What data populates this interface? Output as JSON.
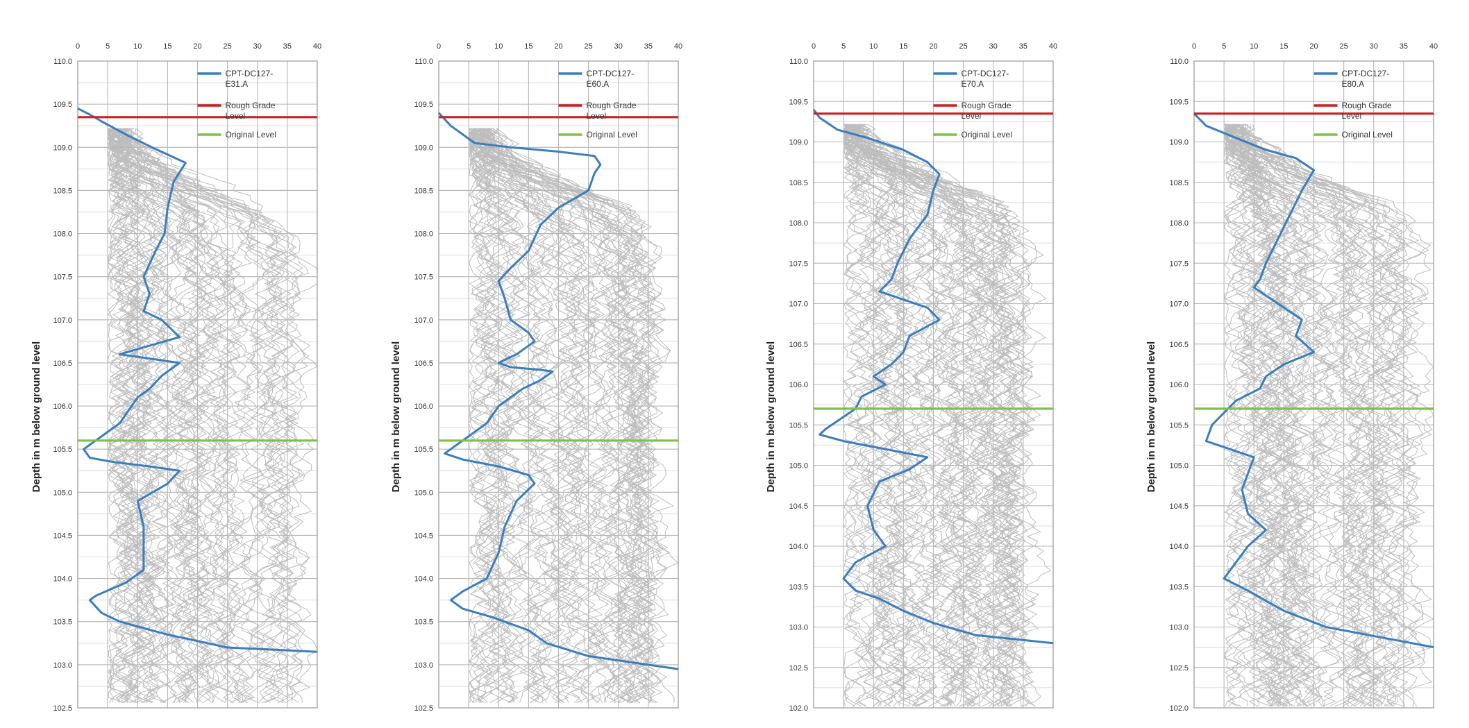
{
  "chart_data": [
    {
      "type": "line",
      "ylabel": "Depth in m below ground level",
      "xlim": [
        0,
        40
      ],
      "ylim": [
        102.5,
        110.0
      ],
      "x_ticks": [
        "0",
        "5",
        "10",
        "15",
        "20",
        "25",
        "30",
        "35",
        "40"
      ],
      "y_ticks": [
        "102.5",
        "103.0",
        "103.5",
        "104.0",
        "104.5",
        "105.0",
        "105.5",
        "106.0",
        "106.5",
        "107.0",
        "107.5",
        "108.0",
        "108.5",
        "109.0",
        "109.5",
        "110.0"
      ],
      "grid": true,
      "legend_position": "top-right",
      "series": [
        {
          "name": "CPT-DC127-E31.A",
          "color": "#3a7ebf",
          "points": [
            [
              0,
              109.45
            ],
            [
              2,
              109.38
            ],
            [
              4,
              109.3
            ],
            [
              8,
              109.15
            ],
            [
              13,
              108.98
            ],
            [
              18,
              108.82
            ],
            [
              16,
              108.6
            ],
            [
              15,
              108.3
            ],
            [
              14.5,
              108.0
            ],
            [
              13,
              107.8
            ],
            [
              11,
              107.5
            ],
            [
              12,
              107.3
            ],
            [
              11,
              107.1
            ],
            [
              14,
              107.0
            ],
            [
              17,
              106.8
            ],
            [
              12,
              106.7
            ],
            [
              7,
              106.6
            ],
            [
              12,
              106.55
            ],
            [
              17,
              106.5
            ],
            [
              14,
              106.35
            ],
            [
              12,
              106.2
            ],
            [
              10,
              106.1
            ],
            [
              9,
              106.0
            ],
            [
              7,
              105.8
            ],
            [
              4,
              105.65
            ],
            [
              1,
              105.5
            ],
            [
              2,
              105.4
            ],
            [
              6,
              105.35
            ],
            [
              12,
              105.3
            ],
            [
              17,
              105.25
            ],
            [
              15,
              105.1
            ],
            [
              10,
              104.9
            ],
            [
              11,
              104.6
            ],
            [
              11,
              104.4
            ],
            [
              11,
              104.1
            ],
            [
              8,
              103.95
            ],
            [
              3,
              103.8
            ],
            [
              2,
              103.75
            ],
            [
              4,
              103.6
            ],
            [
              7,
              103.5
            ],
            [
              15,
              103.35
            ],
            [
              25,
              103.2
            ],
            [
              40,
              103.15
            ]
          ]
        },
        {
          "name": "Rough Grade Level",
          "color": "#cc1f1f",
          "points": [
            [
              0,
              109.35
            ],
            [
              40,
              109.35
            ]
          ]
        },
        {
          "name": "Original Level",
          "color": "#7cc243",
          "points": [
            [
              0,
              105.6
            ],
            [
              40,
              105.6
            ]
          ]
        }
      ]
    },
    {
      "type": "line",
      "ylabel": "Depth in m below ground level",
      "xlim": [
        0,
        40
      ],
      "ylim": [
        102.5,
        110.0
      ],
      "x_ticks": [
        "0",
        "5",
        "10",
        "15",
        "20",
        "25",
        "30",
        "35",
        "40"
      ],
      "y_ticks": [
        "102.5",
        "103.0",
        "103.5",
        "104.0",
        "104.5",
        "105.0",
        "105.5",
        "106.0",
        "106.5",
        "107.0",
        "107.5",
        "108.0",
        "108.5",
        "109.0",
        "109.5",
        "110.0"
      ],
      "grid": true,
      "legend_position": "top-right",
      "series": [
        {
          "name": "CPT-DC127-E60.A",
          "color": "#3a7ebf",
          "points": [
            [
              0,
              109.4
            ],
            [
              2,
              109.25
            ],
            [
              6,
              109.05
            ],
            [
              12,
              109.0
            ],
            [
              20,
              108.95
            ],
            [
              26,
              108.9
            ],
            [
              27,
              108.8
            ],
            [
              26,
              108.7
            ],
            [
              25,
              108.5
            ],
            [
              20,
              108.3
            ],
            [
              17,
              108.1
            ],
            [
              15,
              107.8
            ],
            [
              12,
              107.6
            ],
            [
              10,
              107.45
            ],
            [
              11,
              107.25
            ],
            [
              12,
              107.0
            ],
            [
              15,
              106.85
            ],
            [
              16,
              106.75
            ],
            [
              13,
              106.6
            ],
            [
              10,
              106.5
            ],
            [
              12,
              106.45
            ],
            [
              17,
              106.42
            ],
            [
              19,
              106.4
            ],
            [
              17,
              106.3
            ],
            [
              14,
              106.2
            ],
            [
              12,
              106.1
            ],
            [
              10,
              106.0
            ],
            [
              8,
              105.8
            ],
            [
              5,
              105.65
            ],
            [
              2,
              105.5
            ],
            [
              1,
              105.45
            ],
            [
              4,
              105.38
            ],
            [
              10,
              105.3
            ],
            [
              15,
              105.2
            ],
            [
              16,
              105.1
            ],
            [
              13,
              104.9
            ],
            [
              11,
              104.6
            ],
            [
              10,
              104.3
            ],
            [
              8,
              104.0
            ],
            [
              4,
              103.85
            ],
            [
              2,
              103.75
            ],
            [
              4,
              103.65
            ],
            [
              9,
              103.55
            ],
            [
              15,
              103.4
            ],
            [
              18,
              103.25
            ],
            [
              25,
              103.1
            ],
            [
              40,
              102.95
            ]
          ]
        },
        {
          "name": "Rough Grade Level",
          "color": "#cc1f1f",
          "points": [
            [
              0,
              109.35
            ],
            [
              40,
              109.35
            ]
          ]
        },
        {
          "name": "Original Level",
          "color": "#7cc243",
          "points": [
            [
              0,
              105.6
            ],
            [
              40,
              105.6
            ]
          ]
        }
      ]
    },
    {
      "type": "line",
      "ylabel": "Depth in m below ground level",
      "xlim": [
        0,
        40
      ],
      "ylim": [
        102.0,
        110.0
      ],
      "x_ticks": [
        "0",
        "5",
        "10",
        "15",
        "20",
        "25",
        "30",
        "35",
        "40"
      ],
      "y_ticks": [
        "102.0",
        "102.5",
        "103.0",
        "103.5",
        "104.0",
        "104.5",
        "105.0",
        "105.5",
        "106.0",
        "106.5",
        "107.0",
        "107.5",
        "108.0",
        "108.5",
        "109.0",
        "109.5",
        "110.0"
      ],
      "grid": true,
      "legend_position": "top-right",
      "series": [
        {
          "name": "CPT-DC127-E70.A",
          "color": "#3a7ebf",
          "points": [
            [
              0,
              109.4
            ],
            [
              1,
              109.3
            ],
            [
              4,
              109.15
            ],
            [
              9,
              109.05
            ],
            [
              15,
              108.9
            ],
            [
              19,
              108.75
            ],
            [
              21,
              108.6
            ],
            [
              20,
              108.4
            ],
            [
              19,
              108.1
            ],
            [
              16,
              107.8
            ],
            [
              14,
              107.5
            ],
            [
              13,
              107.3
            ],
            [
              11,
              107.15
            ],
            [
              15,
              107.05
            ],
            [
              19,
              106.95
            ],
            [
              21,
              106.8
            ],
            [
              16,
              106.6
            ],
            [
              15,
              106.4
            ],
            [
              13,
              106.25
            ],
            [
              10,
              106.1
            ],
            [
              12,
              106.0
            ],
            [
              8,
              105.85
            ],
            [
              7,
              105.7
            ],
            [
              5,
              105.6
            ],
            [
              2,
              105.45
            ],
            [
              1,
              105.38
            ],
            [
              5,
              105.3
            ],
            [
              12,
              105.2
            ],
            [
              19,
              105.1
            ],
            [
              16,
              104.95
            ],
            [
              11,
              104.8
            ],
            [
              9,
              104.5
            ],
            [
              10,
              104.2
            ],
            [
              12,
              104.0
            ],
            [
              7,
              103.8
            ],
            [
              5,
              103.6
            ],
            [
              7,
              103.45
            ],
            [
              11,
              103.35
            ],
            [
              15,
              103.2
            ],
            [
              20,
              103.05
            ],
            [
              27,
              102.9
            ],
            [
              40,
              102.8
            ]
          ]
        },
        {
          "name": "Rough Grade Level",
          "color": "#cc1f1f",
          "points": [
            [
              0,
              109.35
            ],
            [
              40,
              109.35
            ]
          ]
        },
        {
          "name": "Original Level",
          "color": "#7cc243",
          "points": [
            [
              0,
              105.7
            ],
            [
              40,
              105.7
            ]
          ]
        }
      ]
    },
    {
      "type": "line",
      "ylabel": "Depth in m below ground level",
      "xlim": [
        0,
        40
      ],
      "ylim": [
        102.0,
        110.0
      ],
      "x_ticks": [
        "0",
        "5",
        "10",
        "15",
        "20",
        "25",
        "30",
        "35",
        "40"
      ],
      "y_ticks": [
        "102.0",
        "102.5",
        "103.0",
        "103.5",
        "104.0",
        "104.5",
        "105.0",
        "105.5",
        "106.0",
        "106.5",
        "107.0",
        "107.5",
        "108.0",
        "108.5",
        "109.0",
        "109.5",
        "110.0"
      ],
      "grid": true,
      "legend_position": "top-right",
      "series": [
        {
          "name": "CPT-DC127-E80.A",
          "color": "#3a7ebf",
          "points": [
            [
              0,
              109.35
            ],
            [
              2,
              109.2
            ],
            [
              7,
              109.05
            ],
            [
              12,
              108.9
            ],
            [
              17,
              108.8
            ],
            [
              20,
              108.65
            ],
            [
              18,
              108.4
            ],
            [
              16,
              108.1
            ],
            [
              14,
              107.8
            ],
            [
              12,
              107.5
            ],
            [
              11,
              107.3
            ],
            [
              10,
              107.2
            ],
            [
              12,
              107.1
            ],
            [
              15,
              106.95
            ],
            [
              18,
              106.8
            ],
            [
              17,
              106.6
            ],
            [
              20,
              106.4
            ],
            [
              15,
              106.25
            ],
            [
              12,
              106.1
            ],
            [
              11,
              105.95
            ],
            [
              7,
              105.8
            ],
            [
              5,
              105.65
            ],
            [
              3,
              105.5
            ],
            [
              2,
              105.3
            ],
            [
              6,
              105.2
            ],
            [
              10,
              105.1
            ],
            [
              9,
              104.9
            ],
            [
              8,
              104.7
            ],
            [
              9,
              104.4
            ],
            [
              12,
              104.2
            ],
            [
              9,
              104.0
            ],
            [
              7,
              103.8
            ],
            [
              5,
              103.6
            ],
            [
              9,
              103.45
            ],
            [
              15,
              103.2
            ],
            [
              22,
              103.0
            ],
            [
              40,
              102.75
            ]
          ]
        },
        {
          "name": "Rough Grade Level",
          "color": "#cc1f1f",
          "points": [
            [
              0,
              109.35
            ],
            [
              40,
              109.35
            ]
          ]
        },
        {
          "name": "Original Level",
          "color": "#7cc243",
          "points": [
            [
              0,
              105.7
            ],
            [
              40,
              105.7
            ]
          ]
        }
      ]
    }
  ],
  "style": {
    "background_traces_color": "#bdbdbd",
    "grid_color": "#b8b8b8",
    "cpt_line_color": "#3a7ebf",
    "rough_grade_color": "#cc1f1f",
    "original_level_color": "#7cc243"
  }
}
